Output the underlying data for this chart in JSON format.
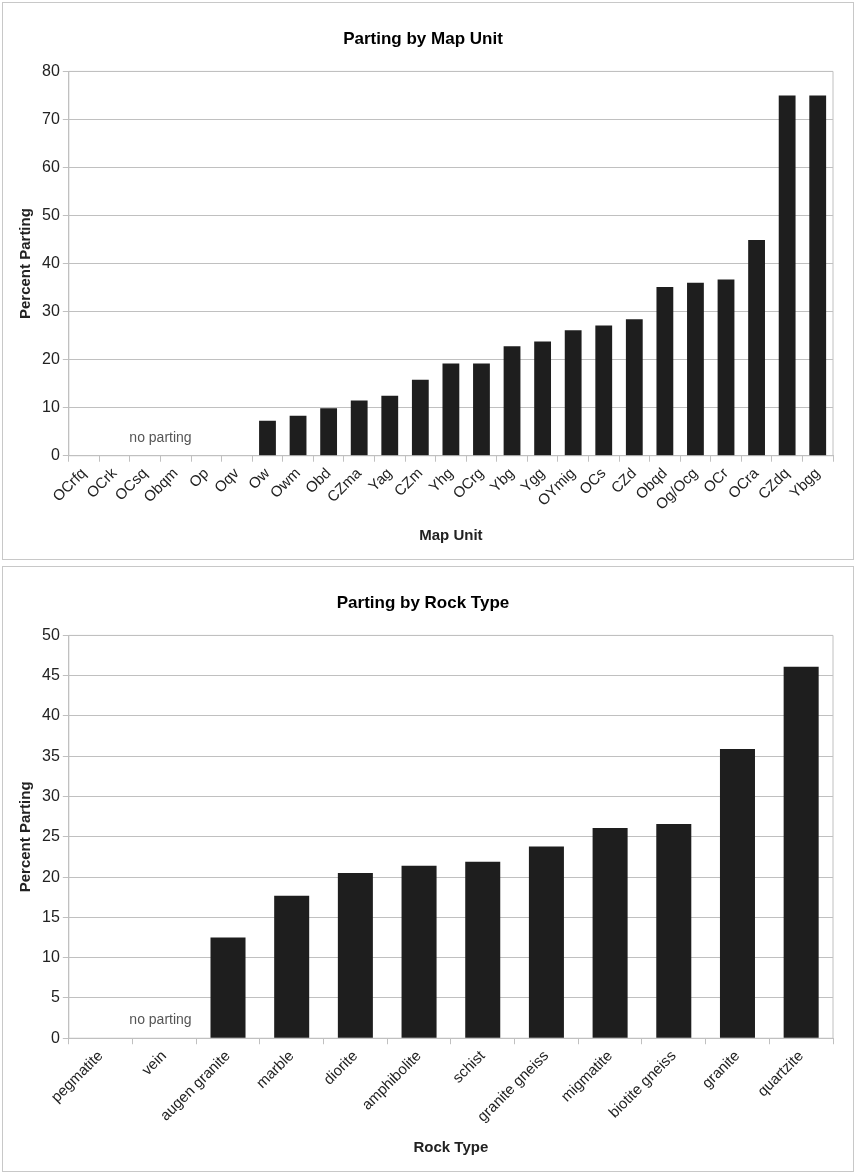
{
  "chart_data": [
    {
      "type": "bar",
      "title": "Parting by Map Unit",
      "xlabel": "Map Unit",
      "ylabel": "Percent Parting",
      "categories": [
        "OCrfq",
        "OCrk",
        "OCsq",
        "Obqm",
        "Op",
        "Oqv",
        "Ow",
        "Owm",
        "Obd",
        "CZma",
        "Yag",
        "CZm",
        "Yhg",
        "OCrg",
        "Ybg",
        "Ygg",
        "OYmig",
        "OCs",
        "CZd",
        "Obqd",
        "Og/Ocg",
        "OCr",
        "OCra",
        "CZdq",
        "Ybgg"
      ],
      "values": [
        0,
        0,
        0,
        0,
        0,
        0,
        7.3,
        8.3,
        9.9,
        11.5,
        12.5,
        15.8,
        19.2,
        19.2,
        22.8,
        23.8,
        26.1,
        27.1,
        28.4,
        35.1,
        36,
        36.7,
        44.9,
        75,
        75
      ],
      "color": "#1e1e1e",
      "ylim": [
        0,
        80
      ],
      "yticks": [
        0,
        10,
        20,
        30,
        40,
        50,
        60,
        70,
        80
      ],
      "grid": "y",
      "annotations": [
        "no parting"
      ]
    },
    {
      "type": "bar",
      "title": "Parting by Rock Type",
      "xlabel": "Rock Type",
      "ylabel": "Percent Parting",
      "categories": [
        "pegmatite",
        "vein",
        "augen granite",
        "marble",
        "diorite",
        "amphibolite",
        "schist",
        "granite gneiss",
        "migmatite",
        "biotite gneiss",
        "granite",
        "quartzite"
      ],
      "values": [
        0,
        0,
        12.5,
        17.7,
        20.5,
        21.4,
        21.9,
        23.8,
        26.1,
        26.6,
        35.9,
        46.1
      ],
      "color": "#1e1e1e",
      "ylim": [
        0,
        50
      ],
      "yticks": [
        0,
        5,
        10,
        15,
        20,
        25,
        30,
        35,
        40,
        45,
        50
      ],
      "grid": "y",
      "annotations": [
        "no parting"
      ]
    }
  ]
}
